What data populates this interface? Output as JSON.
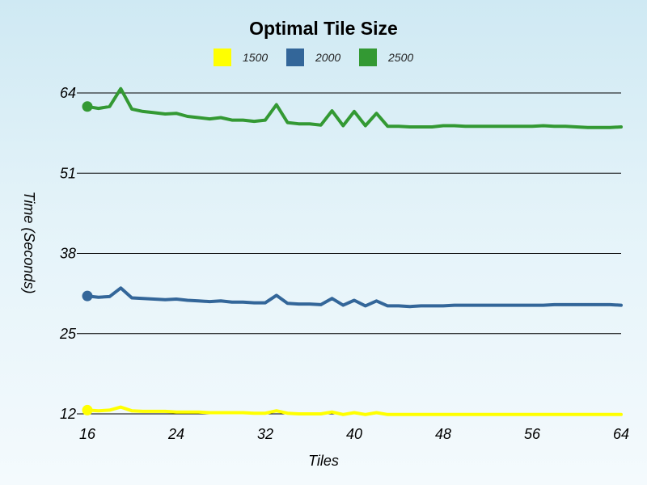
{
  "chart_data": {
    "type": "line",
    "title": "Optimal Tile Size",
    "xlabel": "Tiles",
    "ylabel": "Time (Seconds)",
    "xlim": [
      16,
      64
    ],
    "ylim": [
      12,
      64
    ],
    "xticks": [
      16,
      24,
      32,
      40,
      48,
      56,
      64
    ],
    "yticks": [
      12,
      25,
      38,
      51,
      64
    ],
    "grid": "horizontal",
    "legend": "top",
    "x": [
      16,
      17,
      18,
      19,
      20,
      21,
      22,
      23,
      24,
      25,
      26,
      27,
      28,
      29,
      30,
      31,
      32,
      33,
      34,
      35,
      36,
      37,
      38,
      39,
      40,
      41,
      42,
      43,
      44,
      45,
      46,
      47,
      48,
      49,
      50,
      51,
      52,
      53,
      54,
      55,
      56,
      57,
      58,
      59,
      60,
      61,
      62,
      63,
      64
    ],
    "series": [
      {
        "name": "1500",
        "color": "#ffff00",
        "values": [
          12.6,
          12.5,
          12.6,
          13.1,
          12.5,
          12.4,
          12.4,
          12.4,
          12.3,
          12.3,
          12.3,
          12.2,
          12.2,
          12.2,
          12.2,
          12.1,
          12.1,
          12.5,
          12.1,
          12.0,
          12.0,
          12.0,
          12.3,
          11.9,
          12.2,
          11.9,
          12.2,
          11.9,
          11.9,
          11.9,
          11.9,
          11.9,
          11.9,
          11.9,
          11.9,
          11.9,
          11.9,
          11.9,
          11.9,
          11.9,
          11.9,
          11.9,
          11.9,
          11.9,
          11.9,
          11.9,
          11.9,
          11.9,
          11.9
        ]
      },
      {
        "name": "2000",
        "color": "#336699",
        "values": [
          31.1,
          30.9,
          31.0,
          32.4,
          30.8,
          30.7,
          30.6,
          30.5,
          30.6,
          30.4,
          30.3,
          30.2,
          30.3,
          30.1,
          30.1,
          30.0,
          30.0,
          31.2,
          29.9,
          29.8,
          29.8,
          29.7,
          30.7,
          29.6,
          30.4,
          29.5,
          30.3,
          29.5,
          29.5,
          29.4,
          29.5,
          29.5,
          29.5,
          29.6,
          29.6,
          29.6,
          29.6,
          29.6,
          29.6,
          29.6,
          29.6,
          29.6,
          29.7,
          29.7,
          29.7,
          29.7,
          29.7,
          29.7,
          29.6
        ]
      },
      {
        "name": "2500",
        "color": "#339933",
        "values": [
          61.8,
          61.5,
          61.8,
          64.7,
          61.4,
          61.0,
          60.8,
          60.6,
          60.7,
          60.2,
          60.0,
          59.8,
          60.0,
          59.6,
          59.6,
          59.4,
          59.6,
          62.1,
          59.2,
          59.0,
          59.0,
          58.8,
          61.1,
          58.7,
          61.0,
          58.7,
          60.7,
          58.6,
          58.6,
          58.5,
          58.5,
          58.5,
          58.7,
          58.7,
          58.6,
          58.6,
          58.6,
          58.6,
          58.6,
          58.6,
          58.6,
          58.7,
          58.6,
          58.6,
          58.5,
          58.4,
          58.4,
          58.4,
          58.5
        ]
      }
    ]
  }
}
